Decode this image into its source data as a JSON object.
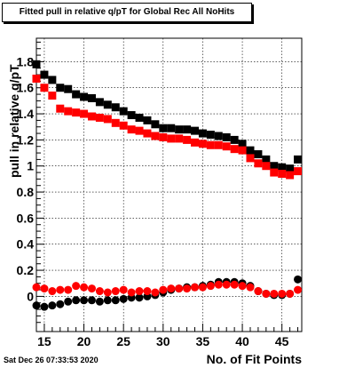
{
  "chart_data": {
    "type": "scatter",
    "title": "Fitted pull in relative q/pT  for Global Rec All NoHits",
    "xlabel": "No. of Fit Points",
    "ylabel": "pull in relative q/pT",
    "xlim": [
      14,
      47.5
    ],
    "ylim": [
      -0.27,
      1.98
    ],
    "xticks": [
      15,
      20,
      25,
      30,
      35,
      40,
      45
    ],
    "yticks": [
      0,
      0.2,
      0.4,
      0.6,
      0.8,
      1,
      1.2,
      1.4,
      1.6,
      1.8
    ],
    "ytick_labels": [
      "0",
      "0.2",
      "0.4",
      "0.6",
      "0.8",
      "1",
      "1.2",
      "1.4",
      "1.6",
      "1.8"
    ],
    "grid": true,
    "series": [
      {
        "color": "#000000",
        "marker": "square",
        "x": [
          14,
          15,
          16,
          17,
          18,
          19,
          20,
          21,
          22,
          23,
          24,
          25,
          26,
          27,
          28,
          29,
          30,
          31,
          32,
          33,
          34,
          35,
          36,
          37,
          38,
          39,
          40,
          41,
          42,
          43,
          44,
          45,
          46,
          47
        ],
        "y": [
          1.78,
          1.7,
          1.66,
          1.6,
          1.59,
          1.55,
          1.53,
          1.52,
          1.49,
          1.47,
          1.45,
          1.42,
          1.39,
          1.37,
          1.35,
          1.32,
          1.29,
          1.29,
          1.28,
          1.28,
          1.27,
          1.25,
          1.24,
          1.23,
          1.22,
          1.2,
          1.17,
          1.12,
          1.09,
          1.05,
          1.0,
          0.99,
          0.98,
          1.05
        ]
      },
      {
        "color": "#ff0000",
        "marker": "square",
        "x": [
          14,
          15,
          16,
          17,
          18,
          19,
          20,
          21,
          22,
          23,
          24,
          25,
          26,
          27,
          28,
          29,
          30,
          31,
          32,
          33,
          34,
          35,
          36,
          37,
          38,
          39,
          40,
          41,
          42,
          43,
          44,
          45,
          46,
          47
        ],
        "y": [
          1.67,
          1.6,
          1.54,
          1.44,
          1.42,
          1.41,
          1.4,
          1.38,
          1.37,
          1.36,
          1.33,
          1.31,
          1.28,
          1.27,
          1.25,
          1.23,
          1.22,
          1.21,
          1.21,
          1.2,
          1.18,
          1.17,
          1.16,
          1.16,
          1.15,
          1.13,
          1.12,
          1.06,
          1.02,
          1.0,
          0.95,
          0.94,
          0.93,
          0.96
        ]
      },
      {
        "color": "#000000",
        "marker": "circle",
        "x": [
          14,
          15,
          16,
          17,
          18,
          19,
          20,
          21,
          22,
          23,
          24,
          25,
          26,
          27,
          28,
          29,
          30,
          31,
          32,
          33,
          34,
          35,
          36,
          37,
          38,
          39,
          40,
          41,
          42,
          43,
          44,
          45,
          46,
          47
        ],
        "y": [
          -0.07,
          -0.08,
          -0.07,
          -0.06,
          -0.04,
          -0.03,
          -0.03,
          -0.03,
          -0.04,
          -0.03,
          -0.03,
          -0.02,
          -0.01,
          -0.01,
          0.0,
          0.01,
          0.03,
          0.05,
          0.06,
          0.07,
          0.07,
          0.08,
          0.09,
          0.11,
          0.11,
          0.11,
          0.1,
          0.08,
          0.04,
          0.02,
          0.01,
          0.01,
          0.02,
          0.13
        ]
      },
      {
        "color": "#ff0000",
        "marker": "circle",
        "x": [
          14,
          15,
          16,
          17,
          18,
          19,
          20,
          21,
          22,
          23,
          24,
          25,
          26,
          27,
          28,
          29,
          30,
          31,
          32,
          33,
          34,
          35,
          36,
          37,
          38,
          39,
          40,
          41,
          42,
          43,
          44,
          45,
          46,
          47
        ],
        "y": [
          0.07,
          0.06,
          0.04,
          0.05,
          0.05,
          0.08,
          0.07,
          0.06,
          0.04,
          0.03,
          0.04,
          0.05,
          0.03,
          0.04,
          0.04,
          0.03,
          0.05,
          0.06,
          0.06,
          0.06,
          0.07,
          0.07,
          0.08,
          0.09,
          0.09,
          0.09,
          0.08,
          0.07,
          0.04,
          0.02,
          0.02,
          0.02,
          0.02,
          0.05
        ]
      }
    ]
  },
  "timestamp": "Sat Dec 26 07:33:53 2020"
}
